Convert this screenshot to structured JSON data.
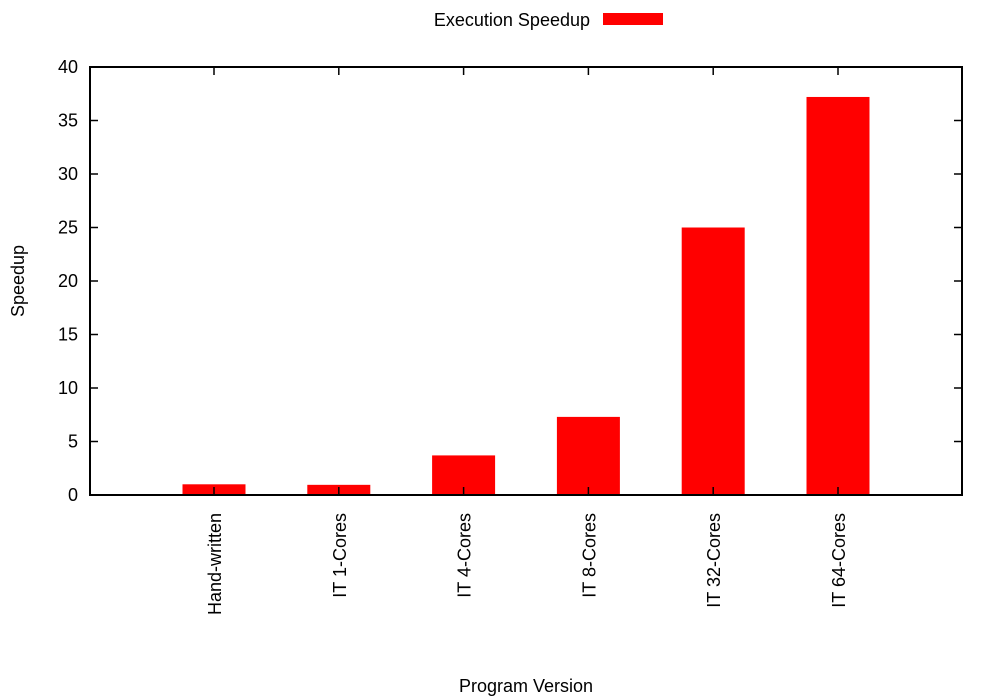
{
  "chart_data": {
    "type": "bar",
    "categories": [
      "Hand-written",
      "IT 1-Cores",
      "IT 4-Cores",
      "IT 8-Cores",
      "IT 32-Cores",
      "IT 64-Cores"
    ],
    "series": [
      {
        "name": "Execution Speedup",
        "color": "#ff0000",
        "values": [
          1.0,
          0.95,
          3.7,
          7.3,
          25.0,
          37.2
        ]
      }
    ],
    "title": "",
    "xlabel": "Program Version",
    "ylabel": "Speedup",
    "ylim": [
      0,
      40
    ],
    "yticks": [
      0,
      5,
      10,
      15,
      20,
      25,
      30,
      35,
      40
    ],
    "x_tick_label_rotation": "vertical",
    "legend": {
      "position": "top-center"
    },
    "grid": false
  }
}
